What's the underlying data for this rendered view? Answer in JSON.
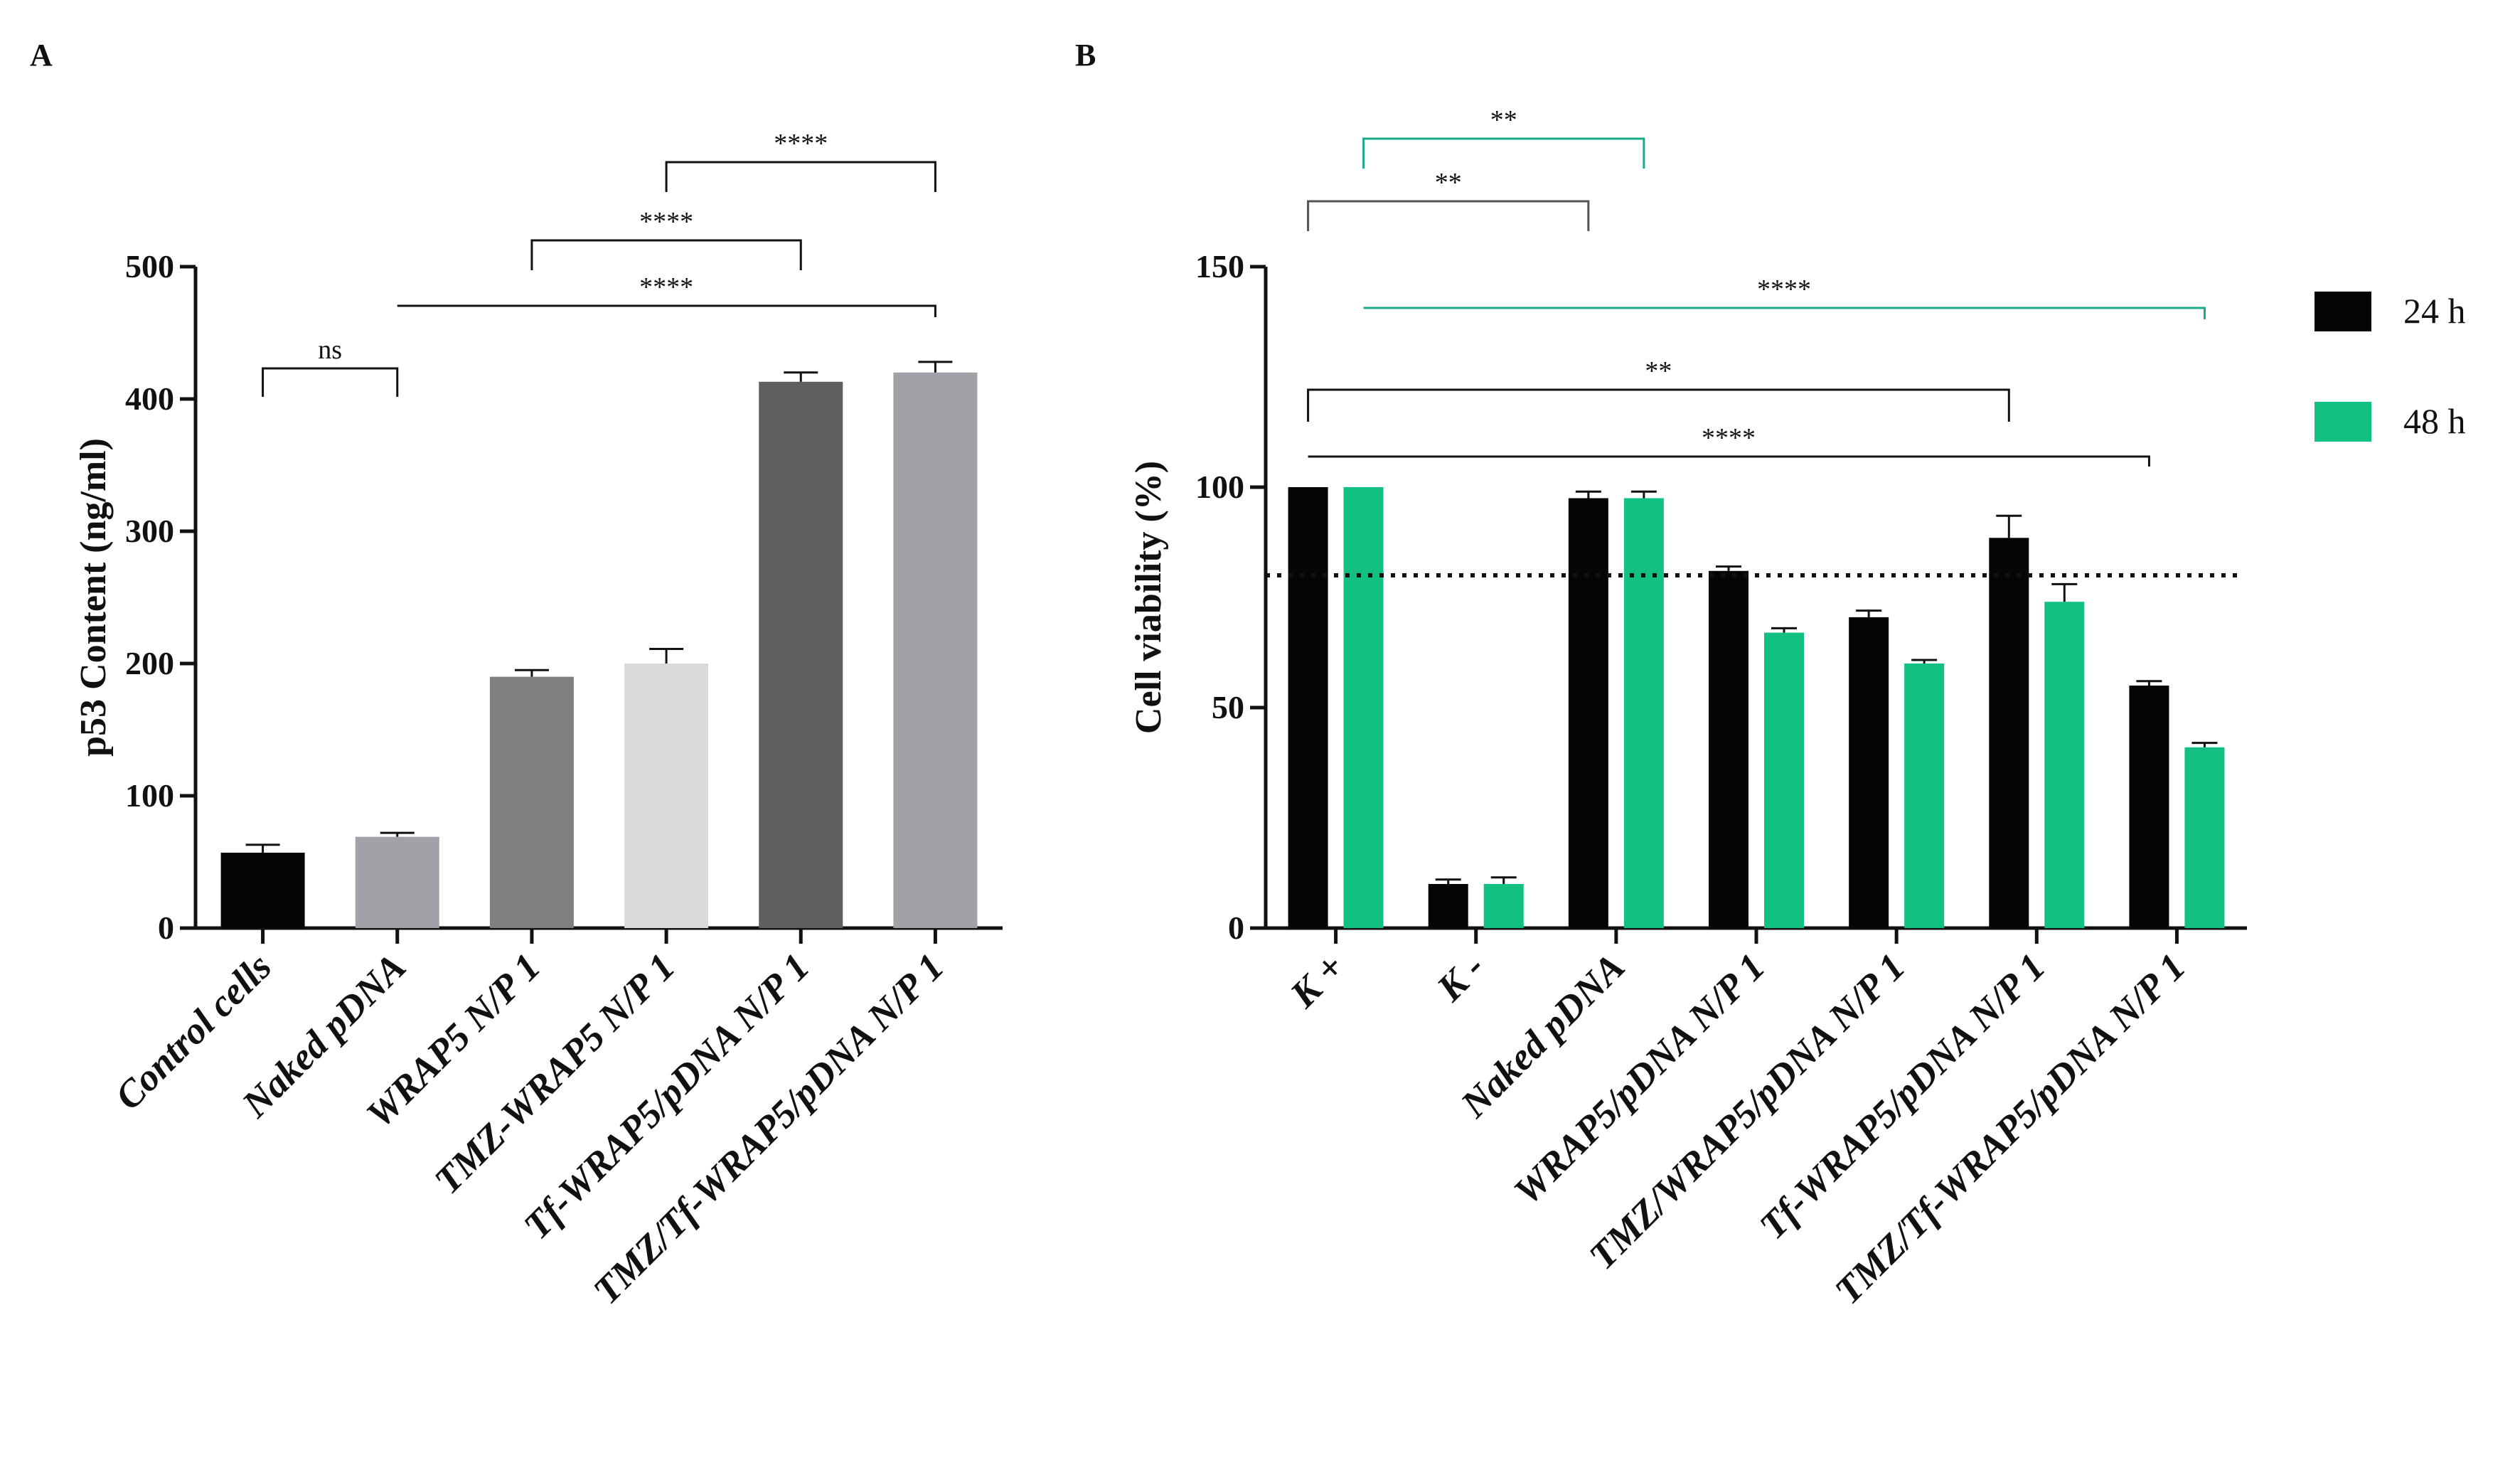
{
  "chart_data": [
    {
      "panel": "A",
      "type": "bar",
      "ylabel": "p53 Content (ng/ml)",
      "ylim": [
        0,
        500
      ],
      "yticks": [
        0,
        100,
        200,
        300,
        400,
        500
      ],
      "categories": [
        "Control cells",
        "Naked pDNA",
        "WRAP5 N/P 1",
        "TMZ-WRAP5 N/P 1",
        "Tf-WRAP5/pDNA N/P 1",
        "TMZ/Tf-WRAP5/pDNA N/P 1"
      ],
      "values": [
        57,
        69,
        190,
        200,
        413,
        420
      ],
      "errors": [
        6,
        3,
        5,
        11,
        7,
        8
      ],
      "colors": [
        "#050505",
        "#a3a1a8",
        "#7f7f7f",
        "#d9d9d9",
        "#5f5f5f",
        "#a3a1a8"
      ],
      "significance": [
        {
          "from": 0,
          "to": 1,
          "label": "ns",
          "color": "#111111"
        },
        {
          "from": 1,
          "to": 5,
          "label": "****",
          "color": "#111111"
        },
        {
          "from": 2,
          "to": 4,
          "label": "****",
          "color": "#111111"
        },
        {
          "from": 3,
          "to": 5,
          "label": "****",
          "color": "#111111"
        }
      ]
    },
    {
      "panel": "B",
      "type": "bar",
      "ylabel": "Cell viability (%)",
      "ylim": [
        0,
        150
      ],
      "yticks": [
        0,
        50,
        100,
        150
      ],
      "categories": [
        "K +",
        "K -",
        "Naked pDNA",
        "WRAP5/pDNA N/P 1",
        "TMZ/WRAP5/pDNA N/P 1",
        "Tf-WRAP5/pDNA N/P 1",
        "TMZ/Tf-WRAP5/pDNA N/P 1"
      ],
      "series": [
        {
          "name": "24 h",
          "color": "#050505",
          "values": [
            100,
            10,
            97.5,
            81,
            70.5,
            88.5,
            55
          ],
          "errors": [
            0,
            1,
            1.5,
            1,
            1.5,
            5,
            1
          ]
        },
        {
          "name": "48 h",
          "color": "#12c082",
          "values": [
            100,
            10,
            97.5,
            67,
            60,
            74,
            41
          ],
          "errors": [
            0,
            1.5,
            1.5,
            1,
            0.8,
            4,
            1
          ]
        }
      ],
      "reference_line": 80,
      "significance": [
        {
          "from": 0,
          "to": 2,
          "series": "48 h",
          "label": "**",
          "color": "#1ca88a"
        },
        {
          "from": 0,
          "to": 2,
          "series": "24 h",
          "label": "**",
          "color": "#555555"
        },
        {
          "from": 0,
          "to": 6,
          "series": "48 h",
          "label": "****",
          "color": "#1ca88a"
        },
        {
          "from": 0,
          "to": 5,
          "series": "24 h",
          "label": "**",
          "color": "#111111"
        },
        {
          "from": 0,
          "to": 6,
          "series": "24 h",
          "label": "****",
          "color": "#111111"
        }
      ]
    }
  ]
}
